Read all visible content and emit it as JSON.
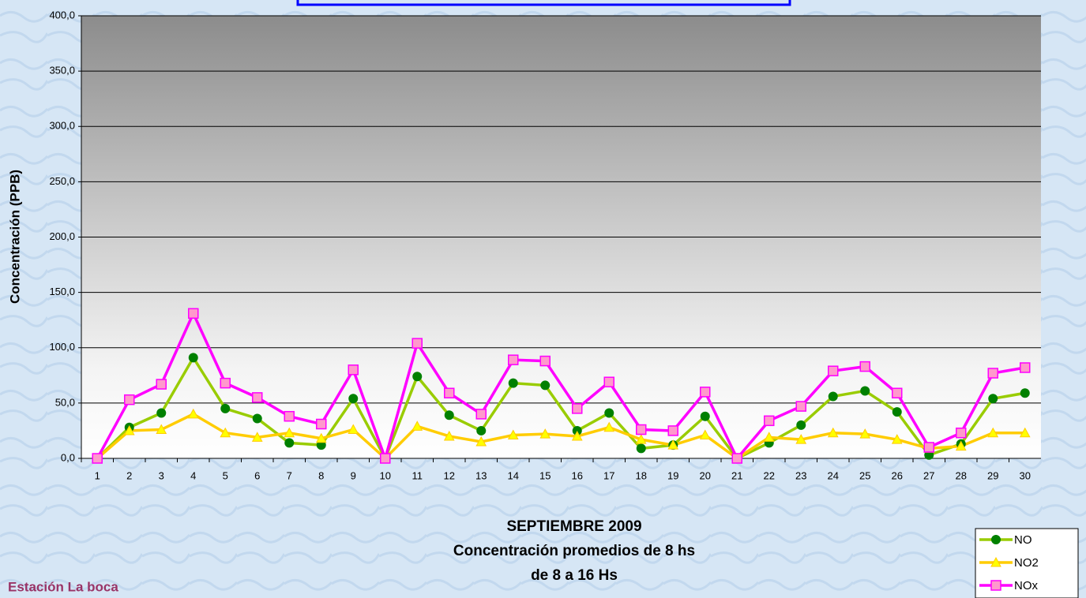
{
  "chart_data": {
    "type": "line",
    "title_lines": [
      "SEPTIEMBRE 2009",
      "Concentración promedios de 8 hs",
      "de 8 a 16 Hs"
    ],
    "y_label": "Concentración (PPB)",
    "annotation": "Estación La boca",
    "categories": [
      1,
      2,
      3,
      4,
      5,
      6,
      7,
      8,
      9,
      10,
      11,
      12,
      13,
      14,
      15,
      16,
      17,
      18,
      19,
      20,
      21,
      22,
      23,
      24,
      25,
      26,
      27,
      28,
      29,
      30
    ],
    "series": [
      {
        "name": "NO",
        "color": "#99cc00",
        "marker": "circle",
        "marker_color": "#008000",
        "values": [
          0,
          28,
          41,
          91,
          45,
          36,
          14,
          12,
          54,
          0,
          74,
          39,
          25,
          68,
          66,
          25,
          41,
          9,
          12,
          38,
          0,
          14,
          30,
          56,
          61,
          42,
          3,
          13,
          54,
          59
        ]
      },
      {
        "name": "NO2",
        "color": "#ffcc00",
        "marker": "triangle",
        "marker_color": "#ffff00",
        "values": [
          0,
          25,
          26,
          40,
          23,
          19,
          23,
          18,
          26,
          0,
          29,
          20,
          15,
          21,
          22,
          20,
          28,
          17,
          12,
          21,
          0,
          19,
          17,
          23,
          22,
          17,
          9,
          11,
          23,
          23
        ]
      },
      {
        "name": "NOx",
        "color": "#ff00ff",
        "marker": "square",
        "marker_color": "#ff99cc",
        "values": [
          0,
          53,
          67,
          131,
          68,
          55,
          38,
          31,
          80,
          0,
          104,
          59,
          40,
          89,
          88,
          45,
          69,
          26,
          25,
          60,
          0,
          34,
          47,
          79,
          83,
          59,
          10,
          23,
          77,
          82
        ]
      }
    ],
    "ylim": [
      0,
      400
    ],
    "yticks": [
      {
        "value": 0,
        "label": "0,0"
      },
      {
        "value": 50,
        "label": "50,0"
      },
      {
        "value": 100,
        "label": "100,0"
      },
      {
        "value": 150,
        "label": "150,0"
      },
      {
        "value": 200,
        "label": "200,0"
      },
      {
        "value": 250,
        "label": "250,0"
      },
      {
        "value": 300,
        "label": "300,0"
      },
      {
        "value": 350,
        "label": "350,0"
      },
      {
        "value": 400,
        "label": "400,0"
      }
    ],
    "grid": true,
    "legend": "bottom-right"
  }
}
